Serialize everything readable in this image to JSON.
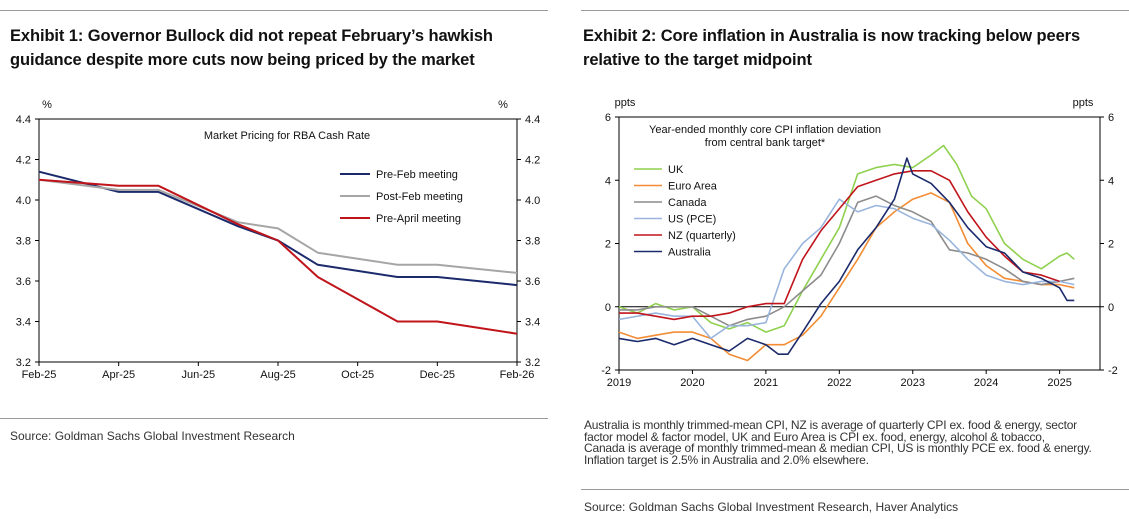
{
  "chart_data": [
    {
      "type": "line",
      "title": "Exhibit 1: Governor Bullock did not repeat February's hawkish guidance despite more cuts now being priced by the market",
      "title_lines": [
        "Exhibit 1: Governor Bullock did not repeat February’s hawkish",
        "guidance despite more cuts now being priced by the market"
      ],
      "inner_title": "Market Pricing for RBA Cash Rate",
      "ylabel_left": "%",
      "ylabel_right": "%",
      "ylim": [
        3.2,
        4.4
      ],
      "yticks": [
        "3.2",
        "3.4",
        "3.6",
        "3.8",
        "4.0",
        "4.2",
        "4.4"
      ],
      "x_range": [
        0,
        12
      ],
      "xticks": [
        {
          "x": 0,
          "label": "Feb-25"
        },
        {
          "x": 2,
          "label": "Apr-25"
        },
        {
          "x": 4,
          "label": "Jun-25"
        },
        {
          "x": 6,
          "label": "Aug-25"
        },
        {
          "x": 8,
          "label": "Oct-25"
        },
        {
          "x": 10,
          "label": "Dec-25"
        },
        {
          "x": 12,
          "label": "Feb-26"
        }
      ],
      "legend_position": "top-right",
      "series": [
        {
          "name": "Pre-Feb meeting",
          "color": "#1b2a6b",
          "x": [
            0,
            2,
            3,
            5,
            6,
            7,
            8,
            9,
            10,
            11,
            12
          ],
          "values": [
            4.14,
            4.04,
            4.04,
            3.87,
            3.8,
            3.68,
            3.65,
            3.62,
            3.62,
            3.6,
            3.58
          ]
        },
        {
          "name": "Post-Feb meeting",
          "color": "#a6a6a6",
          "x": [
            0,
            2,
            3,
            5,
            6,
            7,
            8,
            9,
            10,
            11,
            12
          ],
          "values": [
            4.1,
            4.05,
            4.05,
            3.89,
            3.86,
            3.74,
            3.71,
            3.68,
            3.68,
            3.66,
            3.64
          ]
        },
        {
          "name": "Pre-April meeting",
          "color": "#c0141b",
          "x": [
            0,
            2,
            3,
            5,
            6,
            7,
            8,
            9,
            10,
            11,
            12
          ],
          "values": [
            4.1,
            4.07,
            4.07,
            3.88,
            3.8,
            3.62,
            3.51,
            3.4,
            3.4,
            3.37,
            3.34
          ]
        }
      ],
      "source": "Source: Goldman Sachs Global Investment Research"
    },
    {
      "type": "line",
      "title": "Exhibit 2: Core inflation in Australia is now tracking below peers relative to the target midpoint",
      "title_lines": [
        "Exhibit 2: Core inflation in Australia is now tracking below peers",
        "relative to the target midpoint"
      ],
      "inner_title": [
        "Year-ended monthly core CPI inflation deviation",
        "from central bank target*"
      ],
      "ylabel_left": "ppts",
      "ylabel_right": "ppts",
      "ylim": [
        -2,
        6
      ],
      "yticks": [
        "-2",
        "0",
        "2",
        "4",
        "6"
      ],
      "x_range": [
        2019,
        2025.55
      ],
      "xticks": [
        {
          "x": 2019,
          "label": "2019"
        },
        {
          "x": 2020,
          "label": "2020"
        },
        {
          "x": 2021,
          "label": "2021"
        },
        {
          "x": 2022,
          "label": "2022"
        },
        {
          "x": 2023,
          "label": "2023"
        },
        {
          "x": 2024,
          "label": "2024"
        },
        {
          "x": 2025,
          "label": "2025"
        }
      ],
      "legend_position": "top-left",
      "series": [
        {
          "name": "UK",
          "color": "#8fd14f",
          "x": [
            2019.0,
            2019.25,
            2019.5,
            2019.75,
            2020.0,
            2020.25,
            2020.5,
            2020.75,
            2021.0,
            2021.25,
            2021.5,
            2021.75,
            2022.0,
            2022.25,
            2022.5,
            2022.75,
            2023.0,
            2023.25,
            2023.42,
            2023.6,
            2023.8,
            2024.0,
            2024.25,
            2024.5,
            2024.75,
            2025.0,
            2025.1,
            2025.2
          ],
          "values": [
            0.0,
            -0.2,
            0.1,
            -0.1,
            0.0,
            -0.5,
            -0.7,
            -0.5,
            -0.8,
            -0.6,
            0.5,
            1.5,
            2.5,
            4.2,
            4.4,
            4.5,
            4.4,
            4.8,
            5.1,
            4.5,
            3.5,
            3.1,
            2.0,
            1.5,
            1.2,
            1.6,
            1.7,
            1.5
          ]
        },
        {
          "name": "Euro Area",
          "color": "#f28d35",
          "x": [
            2019.0,
            2019.25,
            2019.5,
            2019.75,
            2020.0,
            2020.25,
            2020.5,
            2020.75,
            2021.0,
            2021.25,
            2021.5,
            2021.75,
            2022.0,
            2022.25,
            2022.5,
            2022.75,
            2023.0,
            2023.25,
            2023.5,
            2023.75,
            2024.0,
            2024.25,
            2024.5,
            2024.75,
            2025.0,
            2025.2
          ],
          "values": [
            -0.8,
            -1.0,
            -0.9,
            -0.8,
            -0.8,
            -1.0,
            -1.5,
            -1.7,
            -1.2,
            -1.2,
            -0.9,
            -0.3,
            0.6,
            1.5,
            2.5,
            3.0,
            3.4,
            3.6,
            3.3,
            2.0,
            1.3,
            0.9,
            0.8,
            0.7,
            0.7,
            0.6
          ]
        },
        {
          "name": "Canada",
          "color": "#8c8c8c",
          "x": [
            2019.0,
            2019.25,
            2019.5,
            2019.75,
            2020.0,
            2020.25,
            2020.5,
            2020.75,
            2021.0,
            2021.25,
            2021.5,
            2021.75,
            2022.0,
            2022.25,
            2022.5,
            2022.75,
            2023.0,
            2023.25,
            2023.5,
            2023.75,
            2024.0,
            2024.25,
            2024.5,
            2024.75,
            2025.0,
            2025.2
          ],
          "values": [
            -0.1,
            -0.1,
            0.0,
            0.0,
            0.0,
            -0.3,
            -0.6,
            -0.4,
            -0.3,
            0.0,
            0.5,
            1.0,
            2.0,
            3.3,
            3.5,
            3.2,
            3.0,
            2.7,
            1.8,
            1.7,
            1.5,
            1.2,
            0.8,
            0.7,
            0.8,
            0.9
          ]
        },
        {
          "name": "US (PCE)",
          "color": "#9ab5dd",
          "x": [
            2019.0,
            2019.25,
            2019.5,
            2019.75,
            2020.0,
            2020.25,
            2020.5,
            2020.75,
            2021.0,
            2021.25,
            2021.5,
            2021.75,
            2022.0,
            2022.25,
            2022.5,
            2022.75,
            2023.0,
            2023.25,
            2023.5,
            2023.75,
            2024.0,
            2024.25,
            2024.5,
            2024.75,
            2025.0,
            2025.2
          ],
          "values": [
            -0.4,
            -0.3,
            -0.2,
            -0.3,
            -0.3,
            -1.0,
            -0.6,
            -0.6,
            -0.5,
            1.2,
            2.0,
            2.5,
            3.4,
            3.0,
            3.2,
            3.1,
            2.8,
            2.6,
            2.1,
            1.5,
            1.0,
            0.8,
            0.7,
            0.8,
            0.8,
            0.7
          ]
        },
        {
          "name": "NZ (quarterly)",
          "color": "#c0141b",
          "x": [
            2019.0,
            2019.25,
            2019.5,
            2019.75,
            2020.0,
            2020.25,
            2020.5,
            2020.75,
            2021.0,
            2021.25,
            2021.5,
            2021.75,
            2022.0,
            2022.25,
            2022.5,
            2022.75,
            2023.0,
            2023.25,
            2023.5,
            2023.75,
            2024.0,
            2024.25,
            2024.5,
            2024.75,
            2025.0
          ],
          "values": [
            -0.2,
            -0.2,
            -0.3,
            -0.4,
            -0.3,
            -0.3,
            -0.2,
            0.0,
            0.1,
            0.1,
            1.5,
            2.4,
            3.1,
            3.8,
            4.0,
            4.2,
            4.3,
            4.3,
            4.0,
            3.0,
            2.2,
            1.6,
            1.1,
            1.0,
            0.8
          ]
        },
        {
          "name": "Australia",
          "color": "#1b2a6b",
          "x": [
            2019.0,
            2019.25,
            2019.5,
            2019.75,
            2020.0,
            2020.25,
            2020.5,
            2020.75,
            2021.0,
            2021.17,
            2021.3,
            2021.5,
            2021.75,
            2022.0,
            2022.25,
            2022.5,
            2022.75,
            2022.92,
            2023.0,
            2023.25,
            2023.5,
            2023.75,
            2024.0,
            2024.25,
            2024.5,
            2024.75,
            2025.0,
            2025.1,
            2025.2
          ],
          "values": [
            -1.0,
            -1.1,
            -1.0,
            -1.2,
            -1.0,
            -1.2,
            -1.4,
            -1.0,
            -1.2,
            -1.5,
            -1.5,
            -0.8,
            0.1,
            0.8,
            1.8,
            2.5,
            3.4,
            4.7,
            4.2,
            3.9,
            3.3,
            2.5,
            1.9,
            1.7,
            1.1,
            0.9,
            0.6,
            0.2,
            0.2
          ]
        }
      ],
      "note_lines": [
        "Australia is monthly trimmed-mean CPI, NZ is average of quarterly CPI ex. food & energy, sector",
        "factor model & factor model, UK and Euro Area is CPI ex. food, energy, alcohol & tobacco,",
        "Canada is average of monthly trimmed-mean & median CPI, US is monthly PCE ex. food & energy.",
        "Inflation target is 2.5% in Australia and 2.0% elsewhere."
      ],
      "source": "Source: Goldman Sachs Global Investment Research, Haver Analytics"
    }
  ]
}
